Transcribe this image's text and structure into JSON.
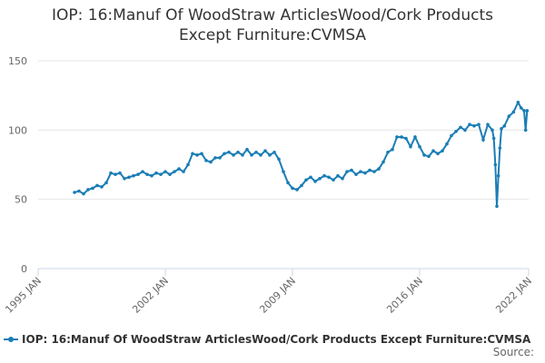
{
  "chart_data": {
    "type": "line",
    "title": "IOP: 16:Manuf Of WoodStraw ArticlesWood/Cork Products Except Furniture:CVMSA",
    "source": "Source:",
    "grid": true,
    "xlim": [
      "1995-01",
      "2022-01"
    ],
    "xticks": [
      {
        "value": "1995-01",
        "label": "1995 JAN"
      },
      {
        "value": "2002-01",
        "label": "2002 JAN"
      },
      {
        "value": "2009-01",
        "label": "2009 JAN"
      },
      {
        "value": "2016-01",
        "label": "2016 JAN"
      },
      {
        "value": "2022-01",
        "label": "2022 JAN"
      }
    ],
    "ylim": [
      0,
      150
    ],
    "yticks": [
      0,
      50,
      100,
      150
    ],
    "x": [
      "1997-01",
      "1997-04",
      "1997-07",
      "1997-10",
      "1998-01",
      "1998-04",
      "1998-07",
      "1998-10",
      "1999-01",
      "1999-04",
      "1999-07",
      "1999-10",
      "2000-01",
      "2000-04",
      "2000-07",
      "2000-10",
      "2001-01",
      "2001-04",
      "2001-07",
      "2001-10",
      "2002-01",
      "2002-04",
      "2002-07",
      "2002-10",
      "2003-01",
      "2003-04",
      "2003-07",
      "2003-10",
      "2004-01",
      "2004-04",
      "2004-07",
      "2004-10",
      "2005-01",
      "2005-04",
      "2005-07",
      "2005-10",
      "2006-01",
      "2006-04",
      "2006-07",
      "2006-10",
      "2007-01",
      "2007-04",
      "2007-07",
      "2007-10",
      "2008-01",
      "2008-04",
      "2008-07",
      "2008-10",
      "2009-01",
      "2009-04",
      "2009-07",
      "2009-10",
      "2010-01",
      "2010-04",
      "2010-07",
      "2010-10",
      "2011-01",
      "2011-04",
      "2011-07",
      "2011-10",
      "2012-01",
      "2012-04",
      "2012-07",
      "2012-10",
      "2013-01",
      "2013-04",
      "2013-07",
      "2013-10",
      "2014-01",
      "2014-04",
      "2014-07",
      "2014-10",
      "2015-01",
      "2015-04",
      "2015-07",
      "2015-10",
      "2016-01",
      "2016-04",
      "2016-07",
      "2016-10",
      "2017-01",
      "2017-04",
      "2017-07",
      "2017-10",
      "2018-01",
      "2018-04",
      "2018-07",
      "2018-10",
      "2019-01",
      "2019-04",
      "2019-07",
      "2019-10",
      "2020-01",
      "2020-02",
      "2020-03",
      "2020-04",
      "2020-05",
      "2020-06",
      "2020-07",
      "2020-09",
      "2020-12",
      "2021-03",
      "2021-06",
      "2021-08",
      "2021-10",
      "2021-11",
      "2021-12"
    ],
    "series": [
      {
        "name": "IOP: 16:Manuf Of WoodStraw ArticlesWood/Cork Products Except Furniture:CVMSA",
        "color": "#1a7db6",
        "values": [
          55,
          56,
          54,
          57,
          58,
          60,
          59,
          62,
          69,
          68,
          69,
          65,
          66,
          67,
          68,
          70,
          68,
          67,
          69,
          68,
          70,
          68,
          70,
          72,
          70,
          75,
          83,
          82,
          83,
          78,
          77,
          80,
          80,
          83,
          84,
          82,
          84,
          82,
          86,
          82,
          84,
          82,
          85,
          82,
          84,
          79,
          70,
          62,
          58,
          57,
          60,
          64,
          66,
          63,
          65,
          67,
          66,
          64,
          67,
          65,
          70,
          71,
          68,
          70,
          69,
          71,
          70,
          72,
          77,
          84,
          86,
          95,
          95,
          94,
          88,
          95,
          88,
          82,
          81,
          85,
          83,
          85,
          90,
          96,
          99,
          102,
          100,
          104,
          103,
          104,
          93,
          104,
          100,
          94,
          75,
          45,
          67,
          87,
          101,
          103,
          110,
          113,
          120,
          116,
          114,
          100,
          114
        ]
      }
    ]
  }
}
